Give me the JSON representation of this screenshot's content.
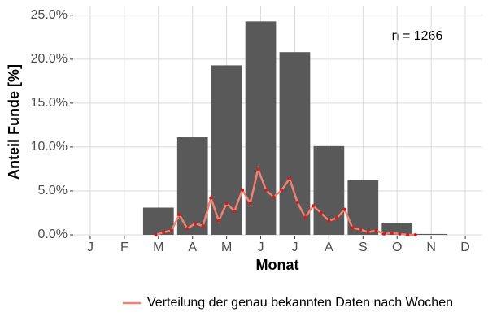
{
  "chart_data": {
    "type": "bar",
    "x_label": "Monat",
    "y_label": "Anteil Funde [%]",
    "annotation": "n = 1266",
    "categories": [
      "J",
      "F",
      "M",
      "A",
      "M",
      "J",
      "J",
      "A",
      "S",
      "O",
      "N",
      "D"
    ],
    "values": [
      0,
      0,
      3.1,
      11.1,
      19.3,
      24.3,
      20.8,
      10.1,
      6.2,
      1.3,
      0.1,
      0
    ],
    "color": "#595959",
    "ylim": [
      0,
      26
    ],
    "yticks": [
      {
        "value": 0,
        "label": "0.0%"
      },
      {
        "value": 5,
        "label": "5.0%"
      },
      {
        "value": 10,
        "label": "10.0%"
      },
      {
        "value": 15,
        "label": "15.0%"
      },
      {
        "value": 20,
        "label": "20.0%"
      },
      {
        "value": 25,
        "label": "25.0%"
      }
    ],
    "grid": true,
    "legend": "bottom",
    "series": [
      {
        "type": "line",
        "name": "Verteilung der genau bekannten Daten nach Wochen",
        "color": "#f08070",
        "point_color": "#d7191c",
        "x": [
          11,
          12,
          13,
          14,
          15,
          16,
          17,
          18,
          19,
          20,
          21,
          22,
          23,
          24,
          25,
          26,
          27,
          28,
          29,
          30,
          31,
          32,
          33,
          34,
          35,
          36,
          37,
          38,
          39,
          40,
          41,
          42,
          43,
          44
        ],
        "values": [
          0,
          0.3,
          0.5,
          2.3,
          0.7,
          1.3,
          1.0,
          4.2,
          1.6,
          3.6,
          2.7,
          5.1,
          3.6,
          7.5,
          5.1,
          4.3,
          5.1,
          6.4,
          3.7,
          2.0,
          3.3,
          2.5,
          1.6,
          1.9,
          2.9,
          0.8,
          0.6,
          0.3,
          0.5,
          0.1,
          0.2,
          0.1,
          0.0,
          0.0
        ]
      }
    ]
  }
}
